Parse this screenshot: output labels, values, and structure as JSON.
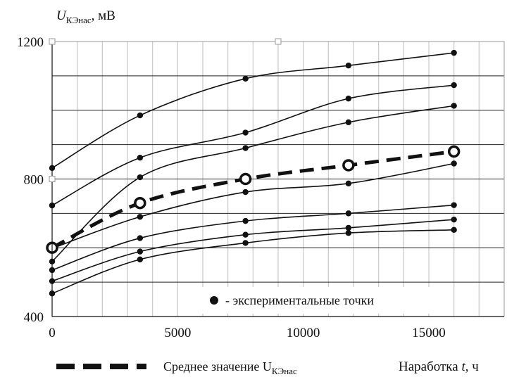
{
  "chart_data": {
    "type": "line",
    "y_axis_title": {
      "var": "U",
      "sub": "КЭнас",
      "unit": ", мВ"
    },
    "x_axis_title": {
      "text": "Наработка ",
      "var": "t",
      "unit": ", ч"
    },
    "xlim": [
      0,
      18000
    ],
    "ylim": [
      400,
      1200
    ],
    "x_ticks": [
      0,
      5000,
      10000,
      15000
    ],
    "y_ticks": [
      400,
      800,
      1200
    ],
    "grid": true,
    "x": [
      0,
      3500,
      7700,
      11800,
      16000
    ],
    "series": [
      {
        "values": [
          832,
          985,
          1092,
          1130,
          1167
        ]
      },
      {
        "values": [
          723,
          862,
          935,
          1034,
          1073
        ]
      },
      {
        "values": [
          560,
          805,
          890,
          965,
          1013
        ]
      },
      {
        "values": [
          598,
          690,
          762,
          787,
          845
        ]
      },
      {
        "values": [
          535,
          628,
          678,
          700,
          724
        ]
      },
      {
        "values": [
          503,
          589,
          638,
          658,
          682
        ]
      },
      {
        "values": [
          467,
          566,
          614,
          643,
          652
        ]
      }
    ],
    "average": {
      "values": [
        600,
        730,
        800,
        840,
        880
      ],
      "legend_label": {
        "text": "Среднее значение ",
        "var": "U",
        "sub": "КЭнас"
      }
    },
    "points_legend_label": "- экспериментальные точки",
    "legend_placement": "bottom-center-inside"
  },
  "colors": {
    "line": "#111111",
    "grid": "#222222",
    "minor_grid": "#c9c9c9",
    "plot_bg": "#ffffff"
  }
}
